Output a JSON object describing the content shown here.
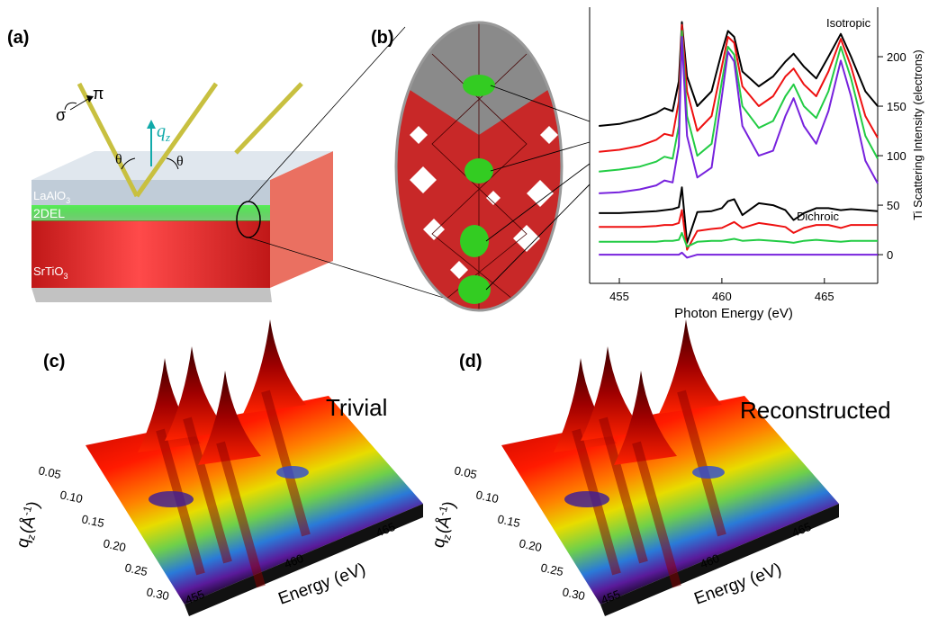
{
  "panel_a": {
    "label": "(a)",
    "sigma": "σ",
    "pi": "π",
    "qz": {
      "q": "q",
      "sub": "z"
    },
    "theta_left": "θ",
    "theta_right": "θ",
    "layers": {
      "lao": {
        "text": "LaAlO",
        "sub": "3"
      },
      "interface": "2DEL",
      "sto": {
        "text": "SrTiO",
        "sub": "3"
      }
    }
  },
  "panel_b_label": "(b)",
  "chart_data": {
    "type": "line",
    "x_label": "Photon Energy (eV)",
    "y_label": "Ti Scattering Intensity (electrons)",
    "annotations": [
      "Isotropic",
      "Dichroic"
    ],
    "x": [
      454,
      455,
      456,
      456.8,
      457.2,
      457.6,
      457.9,
      458.05,
      458.3,
      458.8,
      459.5,
      460,
      460.3,
      460.6,
      461,
      461.8,
      462.5,
      463.1,
      463.5,
      464,
      464.6,
      465.2,
      465.8,
      466.3,
      467,
      467.6
    ],
    "series": [
      {
        "color": "#000000",
        "values": [
          130,
          132,
          137,
          143,
          148,
          145,
          175,
          235,
          180,
          150,
          165,
          205,
          226,
          220,
          185,
          170,
          180,
          195,
          203,
          190,
          178,
          200,
          223,
          200,
          165,
          150
        ]
      },
      {
        "color": "#ee1111",
        "values": [
          104,
          106,
          110,
          116,
          122,
          120,
          155,
          232,
          165,
          125,
          140,
          190,
          220,
          214,
          170,
          150,
          160,
          180,
          188,
          172,
          160,
          185,
          218,
          190,
          140,
          118
        ]
      },
      {
        "color": "#22cc44",
        "values": [
          84,
          86,
          89,
          94,
          99,
          97,
          130,
          226,
          140,
          100,
          112,
          175,
          210,
          202,
          150,
          128,
          135,
          160,
          172,
          150,
          138,
          165,
          210,
          178,
          120,
          97
        ]
      },
      {
        "color": "#7722dd",
        "values": [
          62,
          63,
          66,
          70,
          75,
          73,
          110,
          220,
          120,
          78,
          88,
          160,
          205,
          195,
          130,
          100,
          105,
          140,
          158,
          130,
          112,
          145,
          196,
          160,
          95,
          72
        ]
      },
      {
        "color": "#000000",
        "values": [
          42,
          42,
          43,
          44,
          45,
          46,
          48,
          68,
          12,
          43,
          44,
          47,
          54,
          56,
          40,
          52,
          50,
          45,
          35,
          42,
          47,
          47,
          45,
          46,
          45,
          44
        ]
      },
      {
        "color": "#ee1111",
        "values": [
          28,
          28,
          28,
          29,
          30,
          30,
          32,
          45,
          5,
          24,
          26,
          27,
          30,
          33,
          27,
          32,
          30,
          28,
          22,
          27,
          30,
          30,
          27,
          30,
          30,
          30
        ]
      },
      {
        "color": "#22cc44",
        "values": [
          13,
          13,
          13,
          13,
          14,
          14,
          15,
          22,
          8,
          13,
          14,
          14,
          15,
          16,
          14,
          15,
          14,
          13,
          12,
          14,
          15,
          14,
          13,
          14,
          14,
          14
        ]
      },
      {
        "color": "#7722dd",
        "values": [
          0,
          0,
          0,
          0,
          0,
          0,
          0,
          2,
          -3,
          0,
          0,
          0,
          0,
          0,
          0,
          0,
          0,
          0,
          0,
          0,
          0,
          0,
          0,
          0,
          0,
          0
        ]
      }
    ],
    "xlim": [
      453.55,
      467.6
    ],
    "xticks": [
      455,
      460,
      465
    ],
    "ylim": [
      -29,
      250
    ],
    "yticks": [
      0,
      50,
      100,
      150,
      200
    ]
  },
  "panel_c": {
    "label": "(c)",
    "title": "Trivial",
    "q_axis": {
      "q": "q",
      "sub": "z",
      "unit": "(Å",
      "sup": "-1",
      "close": ")"
    },
    "q_ticks": [
      "0.05",
      "0.10",
      "0.15",
      "0.20",
      "0.25",
      "0.30"
    ],
    "energy_label": "Energy (eV)",
    "energy_ticks": [
      "455",
      "460",
      "465"
    ]
  },
  "panel_d": {
    "label": "(d)",
    "title": "Reconstructed",
    "q_axis": {
      "q": "q",
      "sub": "z",
      "unit": "(Å",
      "sup": "-1",
      "close": ")"
    },
    "q_ticks": [
      "0.05",
      "0.10",
      "0.15",
      "0.20",
      "0.25",
      "0.30"
    ],
    "energy_label": "Energy (eV)",
    "energy_ticks": [
      "455",
      "460",
      "465"
    ]
  }
}
